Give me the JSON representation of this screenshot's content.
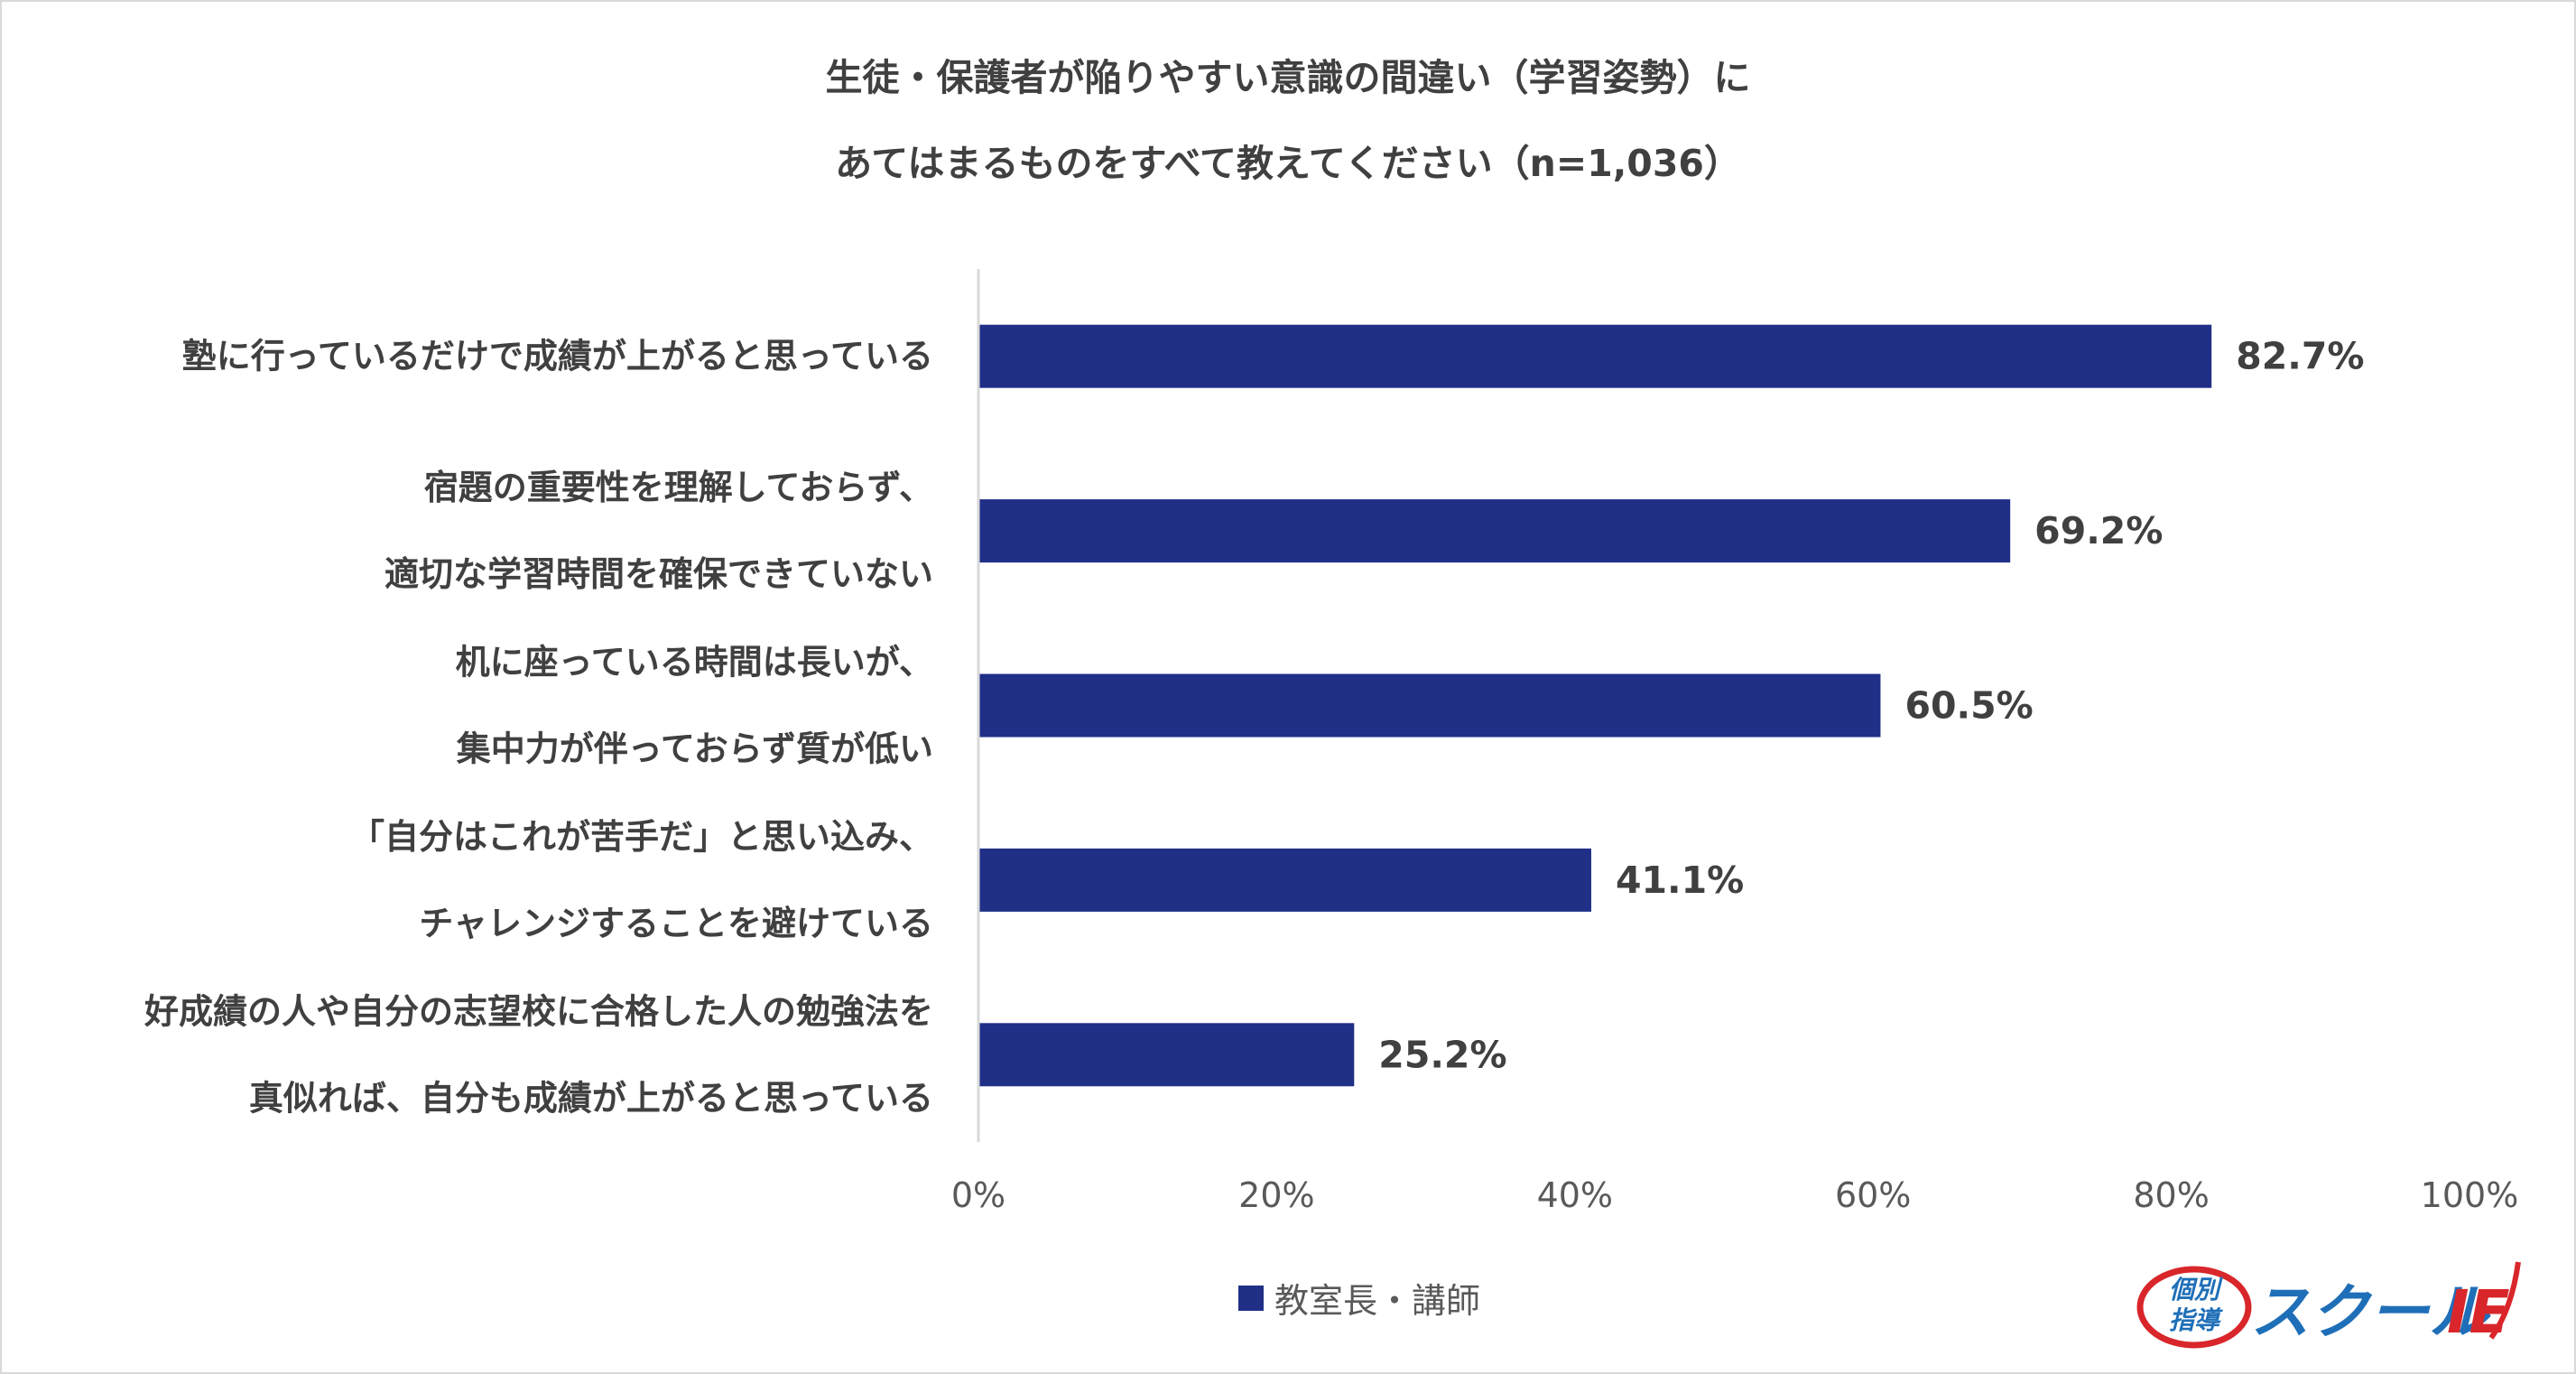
{
  "chart_data": {
    "type": "bar",
    "orientation": "horizontal",
    "title": [
      "生徒・保護者が陥りやすい意識の間違い（学習姿勢）に",
      "あてはまるものをすべて教えてください（n=1,036）"
    ],
    "categories": [
      [
        "塾に行っているだけで成績が上がると思っている"
      ],
      [
        "宿題の重要性を理解しておらず、",
        "適切な学習時間を確保できていない"
      ],
      [
        "机に座っている時間は長いが、",
        "集中力が伴っておらず質が低い"
      ],
      [
        "「自分はこれが苦手だ」と思い込み、",
        "チャレンジすることを避けている"
      ],
      [
        "好成績の人や自分の志望校に合格した人の勉強法を",
        "真似れば、自分も成績が上がると思っている"
      ]
    ],
    "series": [
      {
        "name": "教室長・講師",
        "values": [
          82.7,
          69.2,
          60.5,
          41.1,
          25.2
        ],
        "labels": [
          "82.7%",
          "69.2%",
          "60.5%",
          "41.1%",
          "25.2%"
        ],
        "color": "#203087"
      }
    ],
    "xlim": [
      0,
      100
    ],
    "xticks": [
      0,
      20,
      40,
      60,
      80,
      100
    ],
    "xtick_labels": [
      "0%",
      "20%",
      "40%",
      "60%",
      "80%",
      "100%"
    ],
    "grid": false,
    "legend": "bottom-center"
  },
  "logo": {
    "badge_top": "個別",
    "badge_bottom": "指導",
    "main": "スクール",
    "main_suffix": "IE"
  },
  "colors": {
    "bar": "#203087",
    "axis": "#d9d9d9",
    "text": "#404040",
    "logo_blue": "#1f6fb8",
    "logo_red": "#d9262a"
  }
}
